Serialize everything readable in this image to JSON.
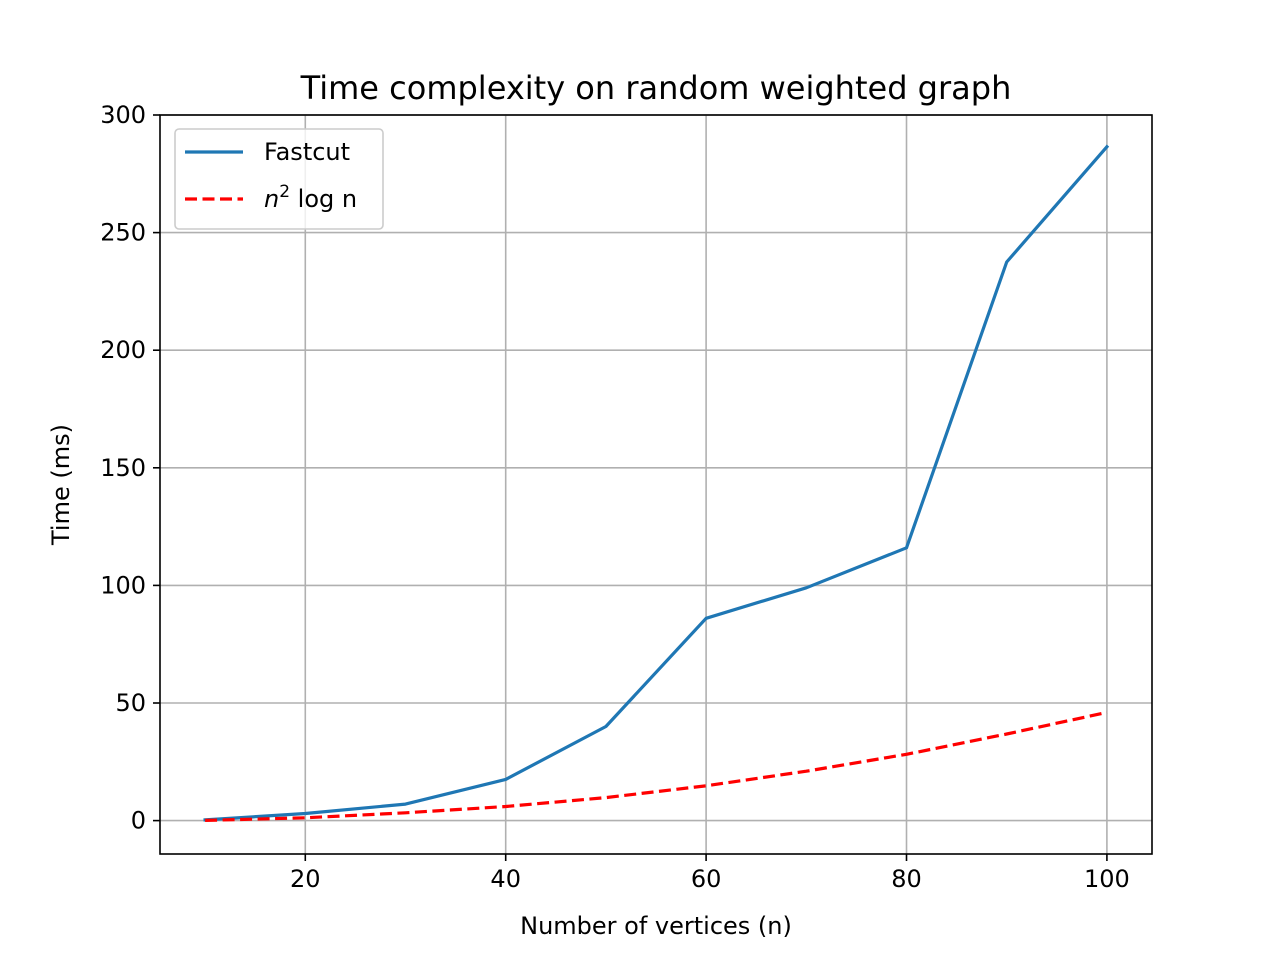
{
  "chart_data": {
    "type": "line",
    "title": "Time complexity on random weighted graph",
    "xlabel": "Number of vertices (n)",
    "ylabel": "Time (ms)",
    "xlim": [
      5.5,
      104.5
    ],
    "ylim": [
      -14.2,
      300
    ],
    "xticks": [
      20,
      40,
      60,
      80,
      100
    ],
    "yticks": [
      0,
      50,
      100,
      150,
      200,
      250,
      300
    ],
    "grid": true,
    "legend_position": "upper-left",
    "series": [
      {
        "name": "Fastcut",
        "legend_text": "Fastcut",
        "style": "solid",
        "color": "#1f77b4",
        "x": [
          10,
          20,
          30,
          40,
          50,
          60,
          70,
          80,
          90,
          100
        ],
        "y": [
          0.3,
          3,
          7,
          17.5,
          40,
          86,
          99,
          116,
          237.5,
          286.5
        ]
      },
      {
        "name": "n^2 log n",
        "legend_math": "n",
        "legend_sup": "2",
        "legend_text": " log n",
        "style": "dashed",
        "color": "#ff0000",
        "x": [
          10,
          20,
          30,
          40,
          50,
          60,
          70,
          80,
          90,
          100
        ],
        "y": [
          0.1,
          1.2,
          3.3,
          6.0,
          9.8,
          14.8,
          21.0,
          28.2,
          36.8,
          46.0
        ]
      }
    ]
  }
}
